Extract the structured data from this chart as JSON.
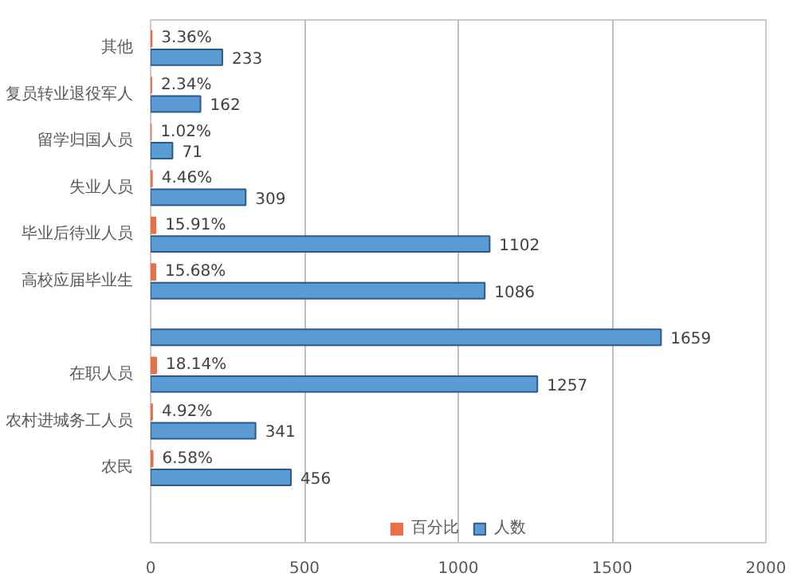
{
  "chart_data": {
    "type": "bar",
    "orientation": "horizontal",
    "categories": [
      "其他",
      "复员转业退役军人",
      "留学归国人员",
      "失业人员",
      "毕业后待业人员",
      "高校应届毕业生",
      null,
      "在职人员",
      "农村进城务工人员",
      "农民"
    ],
    "series": [
      {
        "name": "百分比",
        "color": "#e8704a",
        "values": [
          3.36,
          2.34,
          1.02,
          4.46,
          15.91,
          15.68,
          null,
          18.14,
          4.92,
          6.58
        ],
        "value_labels": [
          "3.36%",
          "2.34%",
          "1.02%",
          "4.46%",
          "15.91%",
          "15.68%",
          null,
          "18.14%",
          "4.92%",
          "6.58%"
        ]
      },
      {
        "name": "人数",
        "color": "#5b9bd5",
        "values": [
          233,
          162,
          71,
          309,
          1102,
          1086,
          1659,
          1257,
          341,
          456
        ],
        "value_labels": [
          "233",
          "162",
          "71",
          "309",
          "1102",
          "1086",
          "1659",
          "1257",
          "341",
          "456"
        ]
      }
    ],
    "xlim": [
      0,
      2000
    ],
    "xticks": [
      0,
      500,
      1000,
      1500,
      2000
    ],
    "grid": "x",
    "legend": "bottom"
  }
}
